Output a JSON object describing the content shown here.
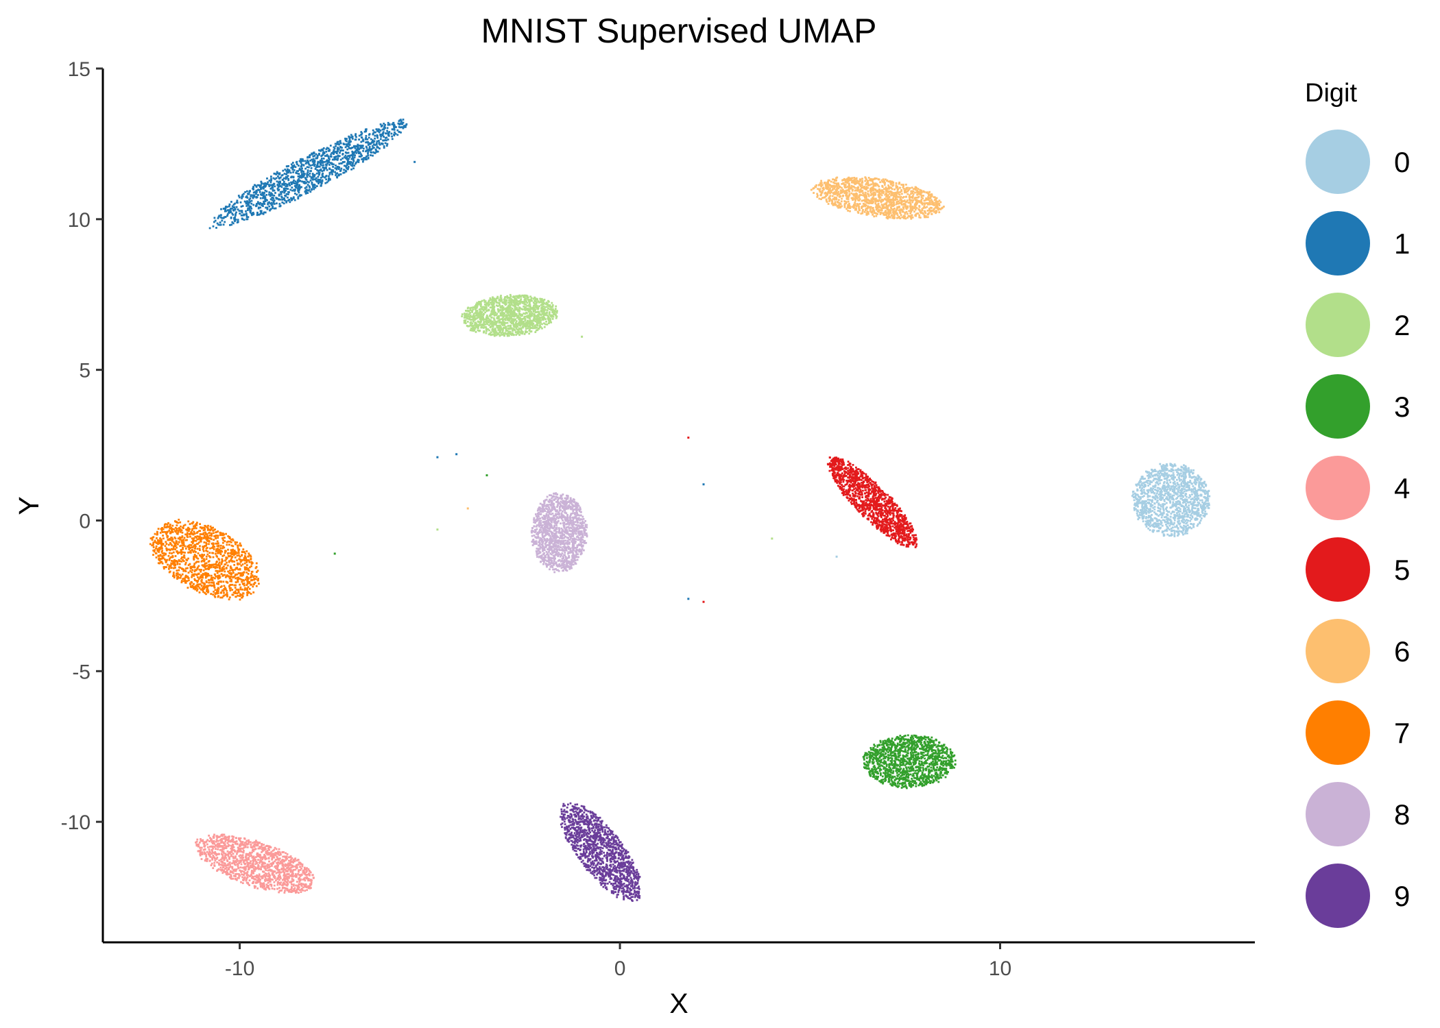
{
  "chart_data": {
    "type": "scatter",
    "title": "MNIST Supervised UMAP",
    "xlabel": "X",
    "ylabel": "Y",
    "xlim": [
      -13.6,
      16.7
    ],
    "ylim": [
      -14.0,
      15.0
    ],
    "xticks": [
      -10,
      0,
      10
    ],
    "xtick_labels": [
      "-10",
      "0",
      "10"
    ],
    "yticks": [
      15,
      10,
      5,
      0,
      -5,
      -10
    ],
    "ytick_labels": [
      "15",
      "10",
      "5",
      "0",
      "-5",
      "-10"
    ],
    "grid": false,
    "legend": {
      "title": "Digit",
      "position": "right"
    },
    "series": [
      {
        "name": "0",
        "color": "#a6cee3",
        "cluster": {
          "cx": 14.5,
          "cy": 0.7,
          "rx": 1.05,
          "ry": 1.25,
          "rot": 0
        }
      },
      {
        "name": "1",
        "color": "#1f78b4",
        "cluster": {
          "cx": -8.2,
          "cy": 11.5,
          "rx": 3.2,
          "ry": 0.55,
          "rot": 34
        }
      },
      {
        "name": "2",
        "color": "#b2df8a",
        "cluster": {
          "cx": -2.9,
          "cy": 6.8,
          "rx": 1.3,
          "ry": 0.7,
          "rot": 6
        }
      },
      {
        "name": "3",
        "color": "#33a02c",
        "cluster": {
          "cx": 7.6,
          "cy": -8.0,
          "rx": 1.25,
          "ry": 0.9,
          "rot": 3
        }
      },
      {
        "name": "4",
        "color": "#fb9a99",
        "cluster": {
          "cx": -9.6,
          "cy": -11.4,
          "rx": 1.75,
          "ry": 0.75,
          "rot": -25
        }
      },
      {
        "name": "5",
        "color": "#e31a1c",
        "cluster": {
          "cx": 6.65,
          "cy": 0.6,
          "rx": 1.9,
          "ry": 0.5,
          "rot": -53
        }
      },
      {
        "name": "6",
        "color": "#fdbf6f",
        "cluster": {
          "cx": 6.8,
          "cy": 10.7,
          "rx": 1.8,
          "ry": 0.65,
          "rot": -11
        }
      },
      {
        "name": "7",
        "color": "#ff7f00",
        "cluster": {
          "cx": -10.9,
          "cy": -1.3,
          "rx": 1.7,
          "ry": 1.05,
          "rot": -40
        }
      },
      {
        "name": "8",
        "color": "#cab2d6",
        "cluster": {
          "cx": -1.6,
          "cy": -0.4,
          "rx": 0.75,
          "ry": 1.35,
          "rot": 0
        }
      },
      {
        "name": "9",
        "color": "#6a3d9a",
        "cluster": {
          "cx": -0.5,
          "cy": -11.0,
          "rx": 1.9,
          "ry": 0.65,
          "rot": -60
        }
      }
    ],
    "outliers": [
      {
        "x": -5.4,
        "y": 11.9,
        "series": "1"
      },
      {
        "x": -4.8,
        "y": 2.1,
        "series": "1"
      },
      {
        "x": -4.3,
        "y": 2.2,
        "series": "1"
      },
      {
        "x": -3.5,
        "y": 1.5,
        "series": "3"
      },
      {
        "x": -4.0,
        "y": 0.4,
        "series": "6"
      },
      {
        "x": -4.8,
        "y": -0.3,
        "series": "2"
      },
      {
        "x": -7.5,
        "y": -1.1,
        "series": "3"
      },
      {
        "x": 1.8,
        "y": 2.75,
        "series": "5"
      },
      {
        "x": 2.2,
        "y": 1.2,
        "series": "1"
      },
      {
        "x": 1.8,
        "y": -2.6,
        "series": "1"
      },
      {
        "x": 2.2,
        "y": -2.7,
        "series": "5"
      },
      {
        "x": 4.0,
        "y": -0.6,
        "series": "2"
      },
      {
        "x": 5.7,
        "y": -1.2,
        "series": "0"
      },
      {
        "x": -1.0,
        "y": 6.1,
        "series": "2"
      }
    ]
  }
}
